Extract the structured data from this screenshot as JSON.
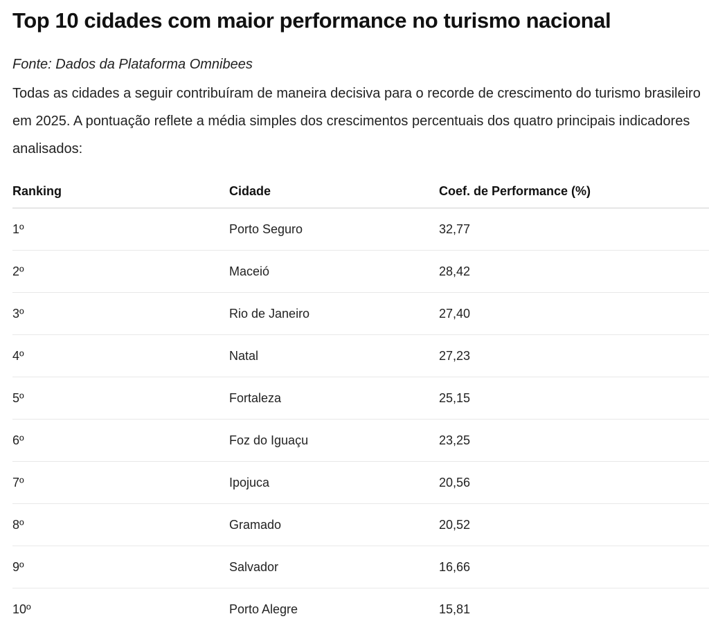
{
  "article": {
    "title": "Top 10 cidades com maior performance no turismo nacional",
    "source": "Fonte: Dados da Plataforma Omnibees",
    "intro": "Todas as cidades a seguir contribuíram de maneira decisiva para o recorde de crescimento do turismo brasileiro em 2025. A pontuação reflete a média simples dos crescimentos percentuais dos quatro principais indicadores analisados:"
  },
  "table": {
    "headers": [
      "Ranking",
      "Cidade",
      "Coef. de Performance (%)"
    ],
    "rows": [
      {
        "rank": "1º",
        "city": "Porto Seguro",
        "score": "32,77"
      },
      {
        "rank": "2º",
        "city": "Maceió",
        "score": "28,42"
      },
      {
        "rank": "3º",
        "city": "Rio de Janeiro",
        "score": "27,40"
      },
      {
        "rank": "4º",
        "city": "Natal",
        "score": "27,23"
      },
      {
        "rank": "5º",
        "city": "Fortaleza",
        "score": "25,15"
      },
      {
        "rank": "6º",
        "city": "Foz do Iguaçu",
        "score": "23,25"
      },
      {
        "rank": "7º",
        "city": "Ipojuca",
        "score": "20,56"
      },
      {
        "rank": "8º",
        "city": "Gramado",
        "score": "20,52"
      },
      {
        "rank": "9º",
        "city": "Salvador",
        "score": "16,66"
      },
      {
        "rank": "10º",
        "city": "Porto Alegre",
        "score": "15,81"
      }
    ]
  }
}
